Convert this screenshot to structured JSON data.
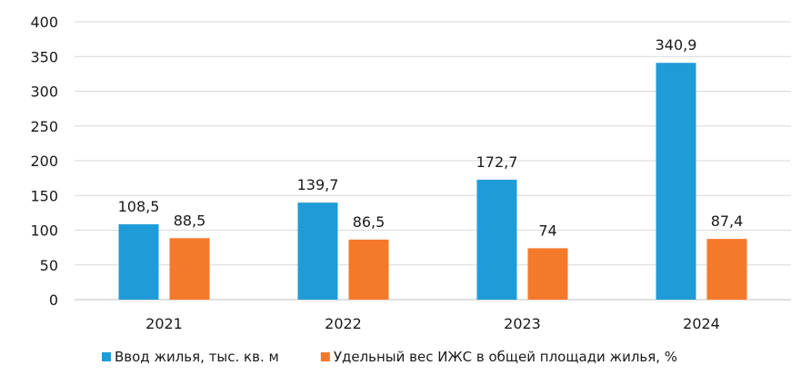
{
  "chart_data": {
    "type": "bar",
    "categories": [
      "2021",
      "2022",
      "2023",
      "2024"
    ],
    "series": [
      {
        "name": "Ввод жилья, тыс. кв. м",
        "color": "#1f9cd8",
        "values": [
          108.5,
          139.7,
          172.7,
          340.9
        ],
        "labels": [
          "108,5",
          "139,7",
          "172,7",
          "340,9"
        ]
      },
      {
        "name": "Удельный вес ИЖС в общей площади жилья, %",
        "color": "#f5792a",
        "values": [
          88.5,
          86.5,
          74,
          87.4
        ],
        "labels": [
          "88,5",
          "86,5",
          "74",
          "87,4"
        ]
      }
    ],
    "ylim": [
      0,
      400
    ],
    "yticks": [
      "0",
      "50",
      "100",
      "150",
      "200",
      "250",
      "300",
      "350",
      "400"
    ],
    "grid": true,
    "legend_position": "bottom"
  }
}
